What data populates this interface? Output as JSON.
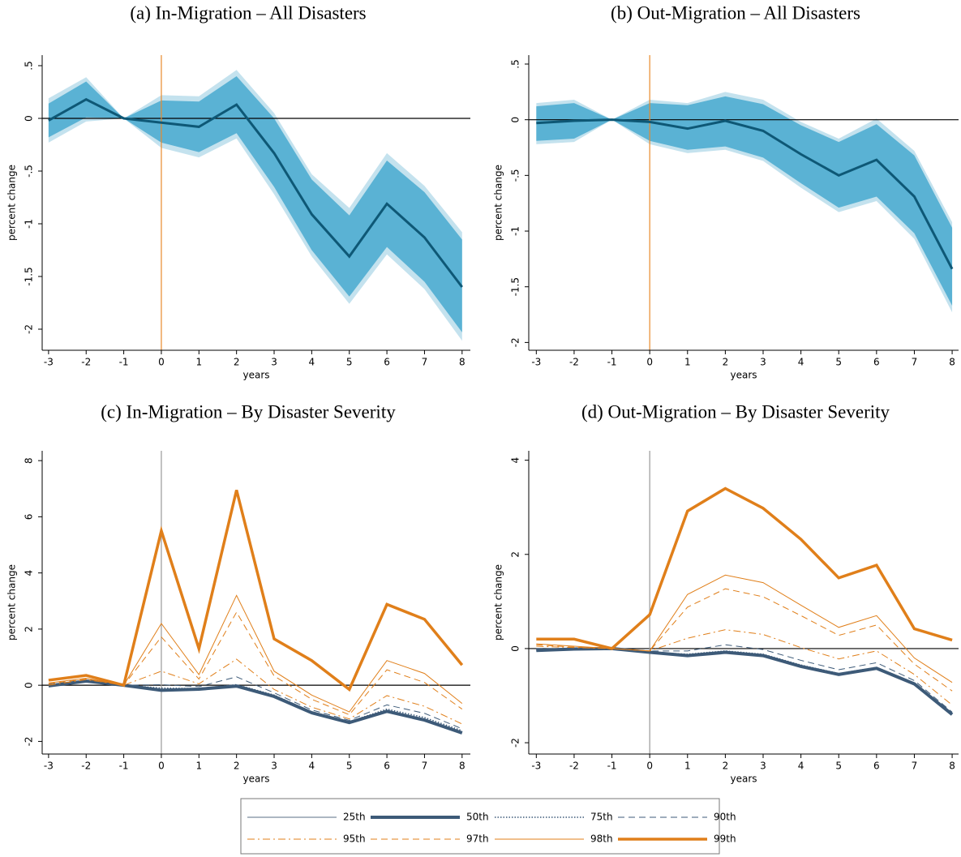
{
  "chart_data": [
    {
      "type": "band-line",
      "title": "(a) In-Migration – All Disasters",
      "xlabel": "years",
      "ylabel": "percent change",
      "x": [
        -3,
        -2,
        -1,
        0,
        1,
        2,
        3,
        4,
        5,
        6,
        7,
        8
      ],
      "xlim": [
        -3.17,
        8.22
      ],
      "xticks": [
        -3,
        -2,
        -1,
        0,
        1,
        2,
        3,
        4,
        5,
        6,
        7,
        8
      ],
      "ylim": [
        -2.2,
        0.6
      ],
      "yticks": [
        {
          "value": 0.5,
          "label": ".5"
        },
        0,
        {
          "value": -0.5,
          "label": "-.5"
        },
        -1,
        {
          "value": -1.5,
          "label": "-1.5"
        },
        -2
      ],
      "hline": 0,
      "vline": {
        "value": 0,
        "color": "#e8892b"
      },
      "bands": [
        {
          "color": "#c4e2ee",
          "upper": [
            0.19,
            0.39,
            0,
            0.22,
            0.21,
            0.46,
            0.05,
            -0.53,
            -0.85,
            -0.33,
            -0.64,
            -1.08
          ],
          "lower": [
            -0.23,
            -0.03,
            0,
            -0.28,
            -0.37,
            -0.19,
            -0.72,
            -1.31,
            -1.76,
            -1.29,
            -1.62,
            -2.11
          ]
        },
        {
          "color": "#5ab2d4",
          "upper": [
            0.14,
            0.35,
            0,
            0.17,
            0.16,
            0.4,
            0.0,
            -0.58,
            -0.92,
            -0.4,
            -0.7,
            -1.15
          ],
          "lower": [
            -0.18,
            0.01,
            0,
            -0.23,
            -0.32,
            -0.14,
            -0.65,
            -1.25,
            -1.69,
            -1.22,
            -1.55,
            -2.03
          ]
        }
      ],
      "series": [
        {
          "color": "#0e5876",
          "linewidth": 3,
          "linestyle": "solid",
          "values": [
            -0.02,
            0.18,
            0,
            -0.04,
            -0.08,
            0.13,
            -0.33,
            -0.91,
            -1.31,
            -0.81,
            -1.13,
            -1.6
          ]
        }
      ]
    },
    {
      "type": "band-line",
      "title": "(b) Out-Migration – All Disasters",
      "xlabel": "years",
      "ylabel": "percent change",
      "x": [
        -3,
        -2,
        -1,
        0,
        1,
        2,
        3,
        4,
        5,
        6,
        7,
        8
      ],
      "xlim": [
        -3.2,
        8.17
      ],
      "xticks": [
        -3,
        -2,
        -1,
        0,
        1,
        2,
        3,
        4,
        5,
        6,
        7,
        8
      ],
      "ylim": [
        -2.07,
        0.58
      ],
      "yticks": [
        {
          "value": 0.5,
          "label": ".5"
        },
        0,
        {
          "value": -0.5,
          "label": "-.5"
        },
        -1,
        {
          "value": -1.5,
          "label": "-1.5"
        },
        -2
      ],
      "hline": 0,
      "vline": {
        "value": 0,
        "color": "#e8892b"
      },
      "bands": [
        {
          "color": "#c4e2ee",
          "upper": [
            0.15,
            0.18,
            0,
            0.18,
            0.15,
            0.25,
            0.18,
            -0.02,
            -0.17,
            0.01,
            -0.28,
            -0.92
          ],
          "lower": [
            -0.22,
            -0.2,
            0,
            -0.22,
            -0.3,
            -0.27,
            -0.37,
            -0.61,
            -0.83,
            -0.73,
            -1.07,
            -1.73
          ]
        },
        {
          "color": "#5ab2d4",
          "upper": [
            0.12,
            0.15,
            0,
            0.15,
            0.13,
            0.21,
            0.14,
            -0.05,
            -0.2,
            -0.04,
            -0.32,
            -0.97
          ],
          "lower": [
            -0.19,
            -0.17,
            0,
            -0.19,
            -0.27,
            -0.24,
            -0.34,
            -0.57,
            -0.79,
            -0.69,
            -1.02,
            -1.67
          ]
        }
      ],
      "series": [
        {
          "color": "#0e5876",
          "linewidth": 3,
          "linestyle": "solid",
          "values": [
            -0.03,
            -0.01,
            0,
            -0.02,
            -0.08,
            -0.01,
            -0.1,
            -0.31,
            -0.5,
            -0.36,
            -0.69,
            -1.34
          ]
        }
      ]
    },
    {
      "type": "line",
      "title": "(c) In-Migration – By Disaster Severity",
      "xlabel": "years",
      "ylabel": "percent change",
      "x": [
        -3,
        -2,
        -1,
        0,
        1,
        2,
        3,
        4,
        5,
        6,
        7,
        8
      ],
      "xlim": [
        -3.17,
        8.22
      ],
      "xticks": [
        -3,
        -2,
        -1,
        0,
        1,
        2,
        3,
        4,
        5,
        6,
        7,
        8
      ],
      "ylim": [
        -2.45,
        8.35
      ],
      "yticks": [
        8,
        6,
        4,
        2,
        0,
        -2
      ],
      "hline": 0,
      "vline": {
        "value": 0,
        "color": "#999999"
      },
      "series": [
        {
          "name": "25th",
          "color": "#5a6f86",
          "linewidth": 1,
          "linestyle": "solid",
          "values": [
            -0.02,
            0.15,
            0,
            -0.17,
            -0.14,
            -0.03,
            -0.4,
            -0.98,
            -1.32,
            -0.93,
            -1.23,
            -1.68
          ]
        },
        {
          "name": "50th",
          "color": "#3d5a78",
          "linewidth": 4,
          "linestyle": "solid",
          "values": [
            -0.02,
            0.15,
            0,
            -0.18,
            -0.14,
            -0.03,
            -0.4,
            -0.98,
            -1.33,
            -0.93,
            -1.24,
            -1.7
          ]
        },
        {
          "name": "75th",
          "color": "#3d5a78",
          "linewidth": 1.5,
          "linestyle": "dotted",
          "values": [
            0,
            0.16,
            0,
            -0.1,
            -0.12,
            0.02,
            -0.35,
            -0.95,
            -1.3,
            -0.85,
            -1.15,
            -1.62
          ]
        },
        {
          "name": "90th",
          "color": "#3d5a78",
          "linewidth": 1,
          "linestyle": "dashed",
          "values": [
            0,
            0.18,
            0,
            0.02,
            -0.05,
            0.3,
            -0.27,
            -0.88,
            -1.25,
            -0.7,
            -1.0,
            -1.55
          ]
        },
        {
          "name": "95th",
          "color": "#e07f1a",
          "linewidth": 1,
          "linestyle": "dashdot",
          "values": [
            0,
            0.2,
            0,
            0.5,
            0.05,
            0.93,
            -0.15,
            -0.78,
            -1.2,
            -0.37,
            -0.75,
            -1.38
          ]
        },
        {
          "name": "97th",
          "color": "#e07f1a",
          "linewidth": 1,
          "linestyle": "dashed",
          "values": [
            0.05,
            0.22,
            0,
            1.72,
            0.22,
            2.6,
            0.33,
            -0.5,
            -1.05,
            0.55,
            0.1,
            -0.85
          ]
        },
        {
          "name": "98th",
          "color": "#e07f1a",
          "linewidth": 1,
          "linestyle": "solid",
          "values": [
            0.08,
            0.25,
            0,
            2.2,
            0.38,
            3.2,
            0.5,
            -0.35,
            -0.95,
            0.88,
            0.42,
            -0.65
          ]
        },
        {
          "name": "99th",
          "color": "#e07f1a",
          "linewidth": 3.5,
          "linestyle": "solid",
          "values": [
            0.18,
            0.35,
            0,
            5.5,
            1.3,
            6.95,
            1.65,
            0.88,
            -0.15,
            2.88,
            2.35,
            0.72
          ]
        }
      ]
    },
    {
      "type": "line",
      "title": "(d) Out-Migration – By Disaster Severity",
      "xlabel": "years",
      "ylabel": "percent change",
      "x": [
        -3,
        -2,
        -1,
        0,
        1,
        2,
        3,
        4,
        5,
        6,
        7,
        8
      ],
      "xlim": [
        -3.2,
        8.17
      ],
      "xticks": [
        -3,
        -2,
        -1,
        0,
        1,
        2,
        3,
        4,
        5,
        6,
        7,
        8
      ],
      "ylim": [
        -2.24,
        4.2
      ],
      "yticks": [
        4,
        2,
        0,
        -2
      ],
      "hline": 0,
      "vline": {
        "value": 0,
        "color": "#999999"
      },
      "series": [
        {
          "color": "#5a6f86",
          "linewidth": 1,
          "linestyle": "solid",
          "values": [
            -0.04,
            -0.01,
            0,
            -0.08,
            -0.15,
            -0.08,
            -0.15,
            -0.38,
            -0.55,
            -0.42,
            -0.75,
            -1.38
          ]
        },
        {
          "color": "#3d5a78",
          "linewidth": 4,
          "linestyle": "solid",
          "values": [
            -0.04,
            -0.01,
            0,
            -0.08,
            -0.15,
            -0.08,
            -0.15,
            -0.38,
            -0.55,
            -0.42,
            -0.75,
            -1.4
          ]
        },
        {
          "color": "#3d5a78",
          "linewidth": 1.5,
          "linestyle": "dotted",
          "values": [
            -0.03,
            -0.01,
            0,
            -0.08,
            -0.12,
            -0.05,
            -0.12,
            -0.35,
            -0.53,
            -0.4,
            -0.73,
            -1.38
          ]
        },
        {
          "color": "#3d5a78",
          "linewidth": 1,
          "linestyle": "dashed",
          "values": [
            0,
            0,
            0,
            -0.05,
            -0.05,
            0.08,
            -0.02,
            -0.25,
            -0.45,
            -0.3,
            -0.68,
            -1.35
          ]
        },
        {
          "color": "#e07f1a",
          "linewidth": 1,
          "linestyle": "dashdot",
          "values": [
            0.05,
            0.02,
            0,
            -0.05,
            0.22,
            0.4,
            0.3,
            0.02,
            -0.22,
            -0.05,
            -0.55,
            -1.2
          ]
        },
        {
          "color": "#e07f1a",
          "linewidth": 1,
          "linestyle": "dashed",
          "values": [
            0.08,
            0.03,
            0,
            -0.05,
            0.88,
            1.27,
            1.1,
            0.7,
            0.28,
            0.5,
            -0.33,
            -0.9
          ]
        },
        {
          "color": "#e07f1a",
          "linewidth": 1,
          "linestyle": "solid",
          "values": [
            0.1,
            0.05,
            0,
            -0.05,
            1.15,
            1.56,
            1.4,
            0.92,
            0.45,
            0.7,
            -0.2,
            -0.72
          ]
        },
        {
          "color": "#e07f1a",
          "linewidth": 3.5,
          "linestyle": "solid",
          "values": [
            0.2,
            0.2,
            0,
            0.72,
            2.92,
            3.4,
            2.98,
            2.32,
            1.5,
            1.77,
            0.42,
            0.18
          ]
        }
      ]
    }
  ]
}
